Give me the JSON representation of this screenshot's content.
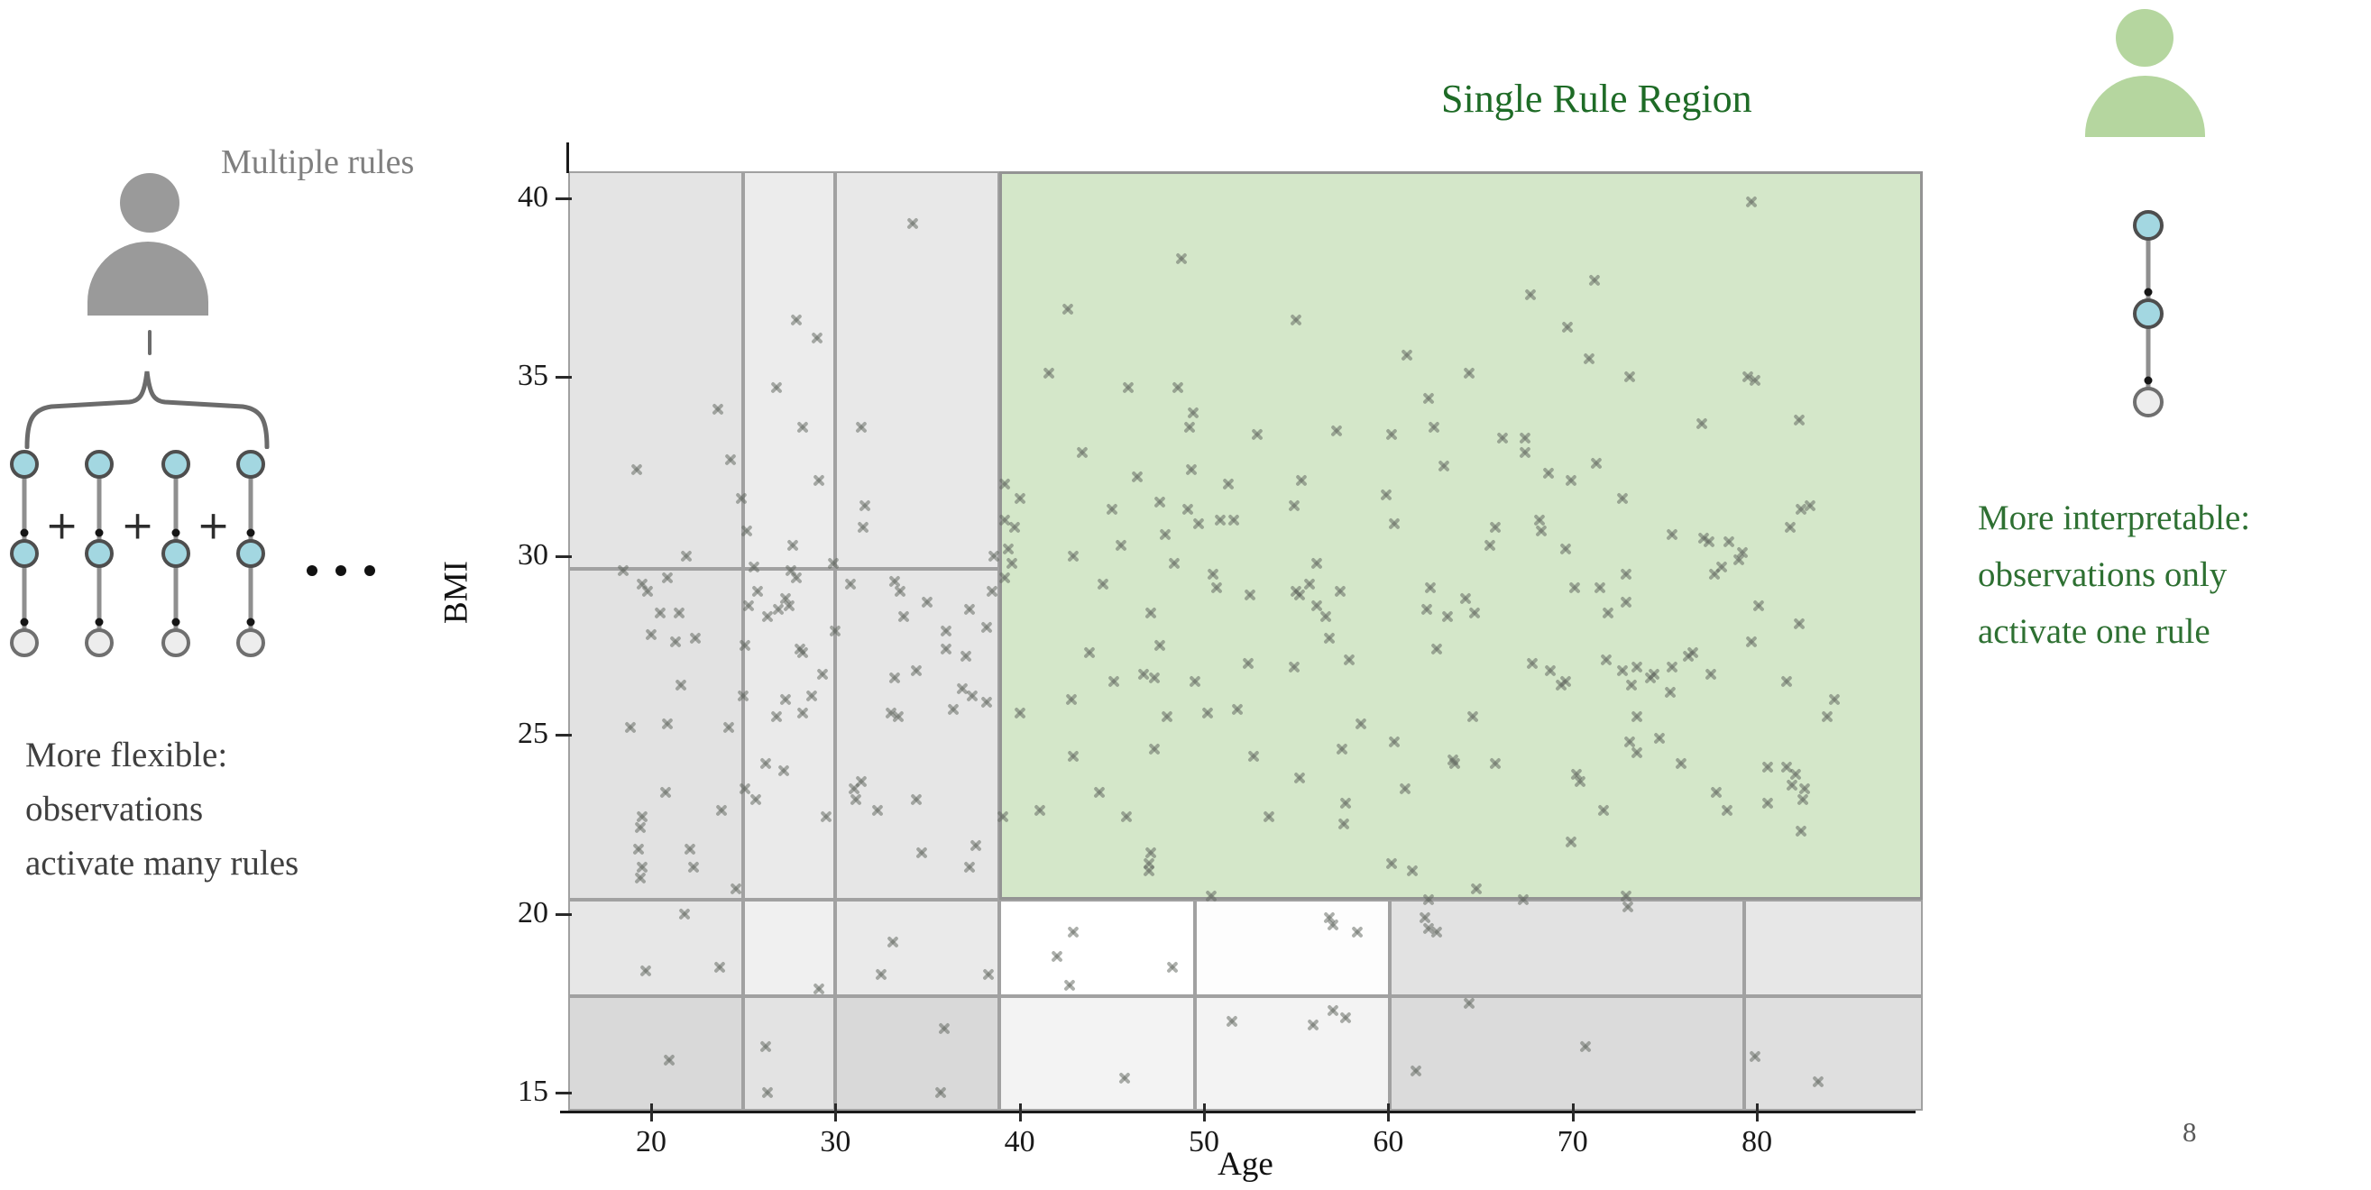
{
  "page_number": "8",
  "left_panel": {
    "title": "Multiple rules",
    "caption_lines": [
      "More flexible:",
      "observations",
      "activate many rules"
    ],
    "plus_sign": "+",
    "ellipsis_dots": 3,
    "num_chains": 4
  },
  "right_panel": {
    "title": "Single Rule Region",
    "caption_lines": [
      "More interpretable:",
      "observations only",
      "activate one rule"
    ],
    "num_chains": 1
  },
  "colors": {
    "title_green": "#1e6b26",
    "caption_green": "#2e7032",
    "caption_gray": "#3f3f3f",
    "label_gray": "#7f7f7f",
    "person_gray": "#9a9a9a",
    "person_green": "#b5d69f",
    "node_blue": "#a3d7e1",
    "node_leaf": "#ededed",
    "region_border": "#a1a1a1",
    "green_region_fill": "#d4e7c9",
    "marker_gray": "rgba(97,104,95,0.52)"
  },
  "chart_data": {
    "type": "scatter",
    "title": "Single Rule Region",
    "xlabel": "Age",
    "ylabel": "BMI",
    "xlim": [
      15.5,
      89
    ],
    "ylim": [
      14.5,
      40.75
    ],
    "xticks": [
      20,
      30,
      40,
      50,
      60,
      70,
      80
    ],
    "yticks": [
      15,
      20,
      25,
      30,
      35,
      40
    ],
    "grid": false,
    "legend": "none",
    "marker": "x",
    "regions": [
      {
        "x1": 15.5,
        "x2": 25,
        "y1": 29.65,
        "y2": 40.75,
        "fill": "#e4e4e4"
      },
      {
        "x1": 25,
        "x2": 30,
        "y1": 29.65,
        "y2": 40.75,
        "fill": "#ececec"
      },
      {
        "x1": 30,
        "x2": 38.9,
        "y1": 29.65,
        "y2": 40.75,
        "fill": "#e8e8e8"
      },
      {
        "x1": 15.5,
        "x2": 25,
        "y1": 20.4,
        "y2": 29.65,
        "fill": "#e2e2e2"
      },
      {
        "x1": 25,
        "x2": 30,
        "y1": 20.4,
        "y2": 29.65,
        "fill": "#eaeaea"
      },
      {
        "x1": 30,
        "x2": 38.9,
        "y1": 20.4,
        "y2": 29.65,
        "fill": "#e6e6e6"
      },
      {
        "x1": 15.5,
        "x2": 25,
        "y1": 17.7,
        "y2": 20.4,
        "fill": "#e7e7e7"
      },
      {
        "x1": 25,
        "x2": 30,
        "y1": 17.7,
        "y2": 20.4,
        "fill": "#f0f0f0"
      },
      {
        "x1": 30,
        "x2": 38.9,
        "y1": 17.7,
        "y2": 20.4,
        "fill": "#eaeaea"
      },
      {
        "x1": 15.5,
        "x2": 25,
        "y1": 14.5,
        "y2": 17.7,
        "fill": "#d9d9d9"
      },
      {
        "x1": 25,
        "x2": 30,
        "y1": 14.5,
        "y2": 17.7,
        "fill": "#e3e3e3"
      },
      {
        "x1": 30,
        "x2": 38.9,
        "y1": 14.5,
        "y2": 17.7,
        "fill": "#d9d9d9"
      },
      {
        "x1": 38.9,
        "x2": 89,
        "y1": 20.4,
        "y2": 40.75,
        "fill": "#d4e7c9",
        "green": true
      },
      {
        "x1": 38.9,
        "x2": 49.5,
        "y1": 17.7,
        "y2": 20.4,
        "fill": "#ffffff"
      },
      {
        "x1": 49.5,
        "x2": 60.1,
        "y1": 17.7,
        "y2": 20.4,
        "fill": "#fdfdfd"
      },
      {
        "x1": 60.1,
        "x2": 79.3,
        "y1": 17.7,
        "y2": 20.4,
        "fill": "#e2e2e2"
      },
      {
        "x1": 79.3,
        "x2": 89,
        "y1": 17.7,
        "y2": 20.4,
        "fill": "#e7e7e7"
      },
      {
        "x1": 38.9,
        "x2": 49.5,
        "y1": 14.5,
        "y2": 17.7,
        "fill": "#f3f3f3"
      },
      {
        "x1": 49.5,
        "x2": 60.1,
        "y1": 14.5,
        "y2": 17.7,
        "fill": "#f3f3f3"
      },
      {
        "x1": 60.1,
        "x2": 79.3,
        "y1": 14.5,
        "y2": 17.7,
        "fill": "#dbdbdb"
      },
      {
        "x1": 79.3,
        "x2": 89,
        "y1": 14.5,
        "y2": 17.7,
        "fill": "#dfdfdf"
      }
    ],
    "points": [
      [
        19.2,
        32.4
      ],
      [
        23.6,
        34.1
      ],
      [
        21.9,
        30.0
      ],
      [
        24.3,
        32.7
      ],
      [
        24.9,
        31.6
      ],
      [
        25.2,
        30.7
      ],
      [
        18.5,
        29.6
      ],
      [
        20.9,
        29.4
      ],
      [
        19.5,
        29.2
      ],
      [
        19.8,
        29.0
      ],
      [
        20.5,
        28.4
      ],
      [
        21.5,
        28.4
      ],
      [
        20.0,
        27.8
      ],
      [
        21.3,
        27.6
      ],
      [
        22.4,
        27.7
      ],
      [
        21.6,
        26.4
      ],
      [
        18.9,
        25.2
      ],
      [
        20.9,
        25.3
      ],
      [
        24.2,
        25.2
      ],
      [
        20.8,
        23.4
      ],
      [
        23.8,
        22.9
      ],
      [
        19.5,
        22.7
      ],
      [
        19.4,
        22.4
      ],
      [
        19.3,
        21.8
      ],
      [
        22.1,
        21.8
      ],
      [
        19.5,
        21.3
      ],
      [
        19.4,
        21.0
      ],
      [
        22.3,
        21.3
      ],
      [
        24.6,
        20.7
      ],
      [
        21.8,
        20.0
      ],
      [
        19.7,
        18.4
      ],
      [
        23.7,
        18.5
      ],
      [
        21.0,
        15.9
      ],
      [
        26.8,
        34.7
      ],
      [
        27.9,
        36.6
      ],
      [
        29.0,
        36.1
      ],
      [
        28.2,
        33.6
      ],
      [
        29.1,
        32.1
      ],
      [
        27.9,
        29.4
      ],
      [
        25.6,
        29.7
      ],
      [
        27.6,
        29.6
      ],
      [
        27.7,
        30.3
      ],
      [
        25.8,
        29.0
      ],
      [
        25.3,
        28.6
      ],
      [
        26.3,
        28.3
      ],
      [
        26.9,
        28.5
      ],
      [
        27.5,
        28.6
      ],
      [
        27.3,
        28.8
      ],
      [
        25.1,
        27.5
      ],
      [
        28.1,
        27.4
      ],
      [
        28.2,
        27.3
      ],
      [
        29.3,
        26.7
      ],
      [
        25.0,
        26.1
      ],
      [
        27.3,
        26.0
      ],
      [
        28.7,
        26.1
      ],
      [
        26.8,
        25.5
      ],
      [
        28.2,
        25.6
      ],
      [
        26.2,
        24.2
      ],
      [
        27.2,
        24.0
      ],
      [
        25.1,
        23.5
      ],
      [
        25.7,
        23.2
      ],
      [
        29.5,
        22.7
      ],
      [
        29.1,
        17.9
      ],
      [
        26.2,
        16.3
      ],
      [
        26.3,
        15.0
      ],
      [
        34.2,
        39.3
      ],
      [
        31.4,
        33.6
      ],
      [
        31.6,
        31.4
      ],
      [
        31.5,
        30.8
      ],
      [
        29.9,
        29.8
      ],
      [
        30.8,
        29.2
      ],
      [
        33.2,
        29.3
      ],
      [
        33.5,
        29.0
      ],
      [
        33.7,
        28.3
      ],
      [
        35.0,
        28.7
      ],
      [
        36.0,
        27.9
      ],
      [
        30.0,
        27.9
      ],
      [
        34.4,
        26.8
      ],
      [
        33.2,
        26.6
      ],
      [
        33.0,
        25.6
      ],
      [
        33.4,
        25.5
      ],
      [
        36.4,
        25.7
      ],
      [
        31.4,
        23.7
      ],
      [
        31.0,
        23.5
      ],
      [
        31.1,
        23.2
      ],
      [
        32.3,
        22.9
      ],
      [
        34.4,
        23.2
      ],
      [
        37.3,
        28.5
      ],
      [
        38.2,
        28.0
      ],
      [
        36.0,
        27.4
      ],
      [
        37.1,
        27.2
      ],
      [
        36.9,
        26.3
      ],
      [
        37.4,
        26.1
      ],
      [
        38.2,
        25.9
      ],
      [
        38.5,
        29.0
      ],
      [
        38.6,
        30.0
      ],
      [
        33.1,
        19.2
      ],
      [
        32.5,
        18.3
      ],
      [
        38.3,
        18.3
      ],
      [
        35.9,
        16.8
      ],
      [
        35.7,
        15.0
      ],
      [
        34.7,
        21.7
      ],
      [
        37.6,
        21.9
      ],
      [
        37.3,
        21.3
      ],
      [
        39.2,
        31.0
      ],
      [
        39.4,
        30.2
      ],
      [
        39.6,
        29.8
      ],
      [
        39.2,
        29.4
      ],
      [
        39.1,
        22.7
      ],
      [
        39.2,
        32.0
      ],
      [
        48.8,
        38.3
      ],
      [
        42.6,
        36.9
      ],
      [
        55.0,
        36.6
      ],
      [
        41.6,
        35.1
      ],
      [
        45.9,
        34.7
      ],
      [
        48.6,
        34.7
      ],
      [
        61.0,
        35.6
      ],
      [
        49.4,
        34.0
      ],
      [
        49.2,
        33.6
      ],
      [
        52.9,
        33.4
      ],
      [
        57.2,
        33.5
      ],
      [
        60.2,
        33.4
      ],
      [
        62.2,
        34.4
      ],
      [
        62.5,
        33.6
      ],
      [
        43.4,
        32.9
      ],
      [
        46.4,
        32.2
      ],
      [
        49.3,
        32.4
      ],
      [
        51.3,
        32.0
      ],
      [
        55.3,
        32.1
      ],
      [
        79.7,
        39.9
      ],
      [
        71.2,
        37.7
      ],
      [
        67.7,
        37.3
      ],
      [
        69.7,
        36.4
      ],
      [
        70.9,
        35.5
      ],
      [
        64.4,
        35.1
      ],
      [
        73.1,
        35.0
      ],
      [
        79.5,
        35.0
      ],
      [
        79.9,
        34.9
      ],
      [
        77.0,
        33.7
      ],
      [
        82.3,
        33.8
      ],
      [
        66.2,
        33.3
      ],
      [
        67.4,
        33.3
      ],
      [
        67.4,
        32.9
      ],
      [
        63.0,
        32.5
      ],
      [
        71.3,
        32.6
      ],
      [
        68.7,
        32.3
      ],
      [
        69.9,
        32.1
      ],
      [
        72.7,
        31.6
      ],
      [
        65.8,
        30.8
      ],
      [
        68.2,
        31.0
      ],
      [
        68.3,
        30.7
      ],
      [
        65.5,
        30.3
      ],
      [
        69.6,
        30.2
      ],
      [
        75.4,
        30.6
      ],
      [
        77.1,
        30.5
      ],
      [
        77.4,
        30.4
      ],
      [
        78.5,
        30.4
      ],
      [
        79.2,
        30.1
      ],
      [
        79.0,
        29.9
      ],
      [
        78.1,
        29.7
      ],
      [
        77.7,
        29.5
      ],
      [
        81.8,
        30.8
      ],
      [
        82.9,
        31.4
      ],
      [
        82.4,
        31.3
      ],
      [
        72.9,
        29.5
      ],
      [
        64.2,
        28.8
      ],
      [
        64.7,
        28.4
      ],
      [
        63.2,
        28.3
      ],
      [
        70.1,
        29.1
      ],
      [
        71.5,
        29.1
      ],
      [
        72.9,
        28.7
      ],
      [
        71.9,
        28.4
      ],
      [
        80.1,
        28.6
      ],
      [
        82.3,
        28.1
      ],
      [
        40.0,
        31.6
      ],
      [
        39.7,
        30.8
      ],
      [
        45.0,
        31.3
      ],
      [
        47.6,
        31.5
      ],
      [
        49.1,
        31.3
      ],
      [
        49.7,
        30.9
      ],
      [
        50.9,
        31.0
      ],
      [
        51.6,
        31.0
      ],
      [
        47.9,
        30.6
      ],
      [
        54.9,
        31.4
      ],
      [
        59.9,
        31.7
      ],
      [
        60.3,
        30.9
      ],
      [
        45.5,
        30.3
      ],
      [
        42.9,
        30.0
      ],
      [
        48.4,
        29.8
      ],
      [
        50.5,
        29.5
      ],
      [
        50.7,
        29.1
      ],
      [
        44.5,
        29.2
      ],
      [
        52.5,
        28.9
      ],
      [
        56.1,
        29.8
      ],
      [
        55.0,
        29.0
      ],
      [
        55.2,
        28.9
      ],
      [
        55.7,
        29.2
      ],
      [
        56.1,
        28.6
      ],
      [
        56.6,
        28.3
      ],
      [
        57.4,
        29.0
      ],
      [
        56.8,
        27.7
      ],
      [
        47.1,
        28.4
      ],
      [
        47.6,
        27.5
      ],
      [
        62.3,
        29.1
      ],
      [
        62.1,
        28.5
      ],
      [
        43.8,
        27.3
      ],
      [
        46.7,
        26.7
      ],
      [
        47.3,
        26.6
      ],
      [
        45.1,
        26.5
      ],
      [
        49.5,
        26.5
      ],
      [
        52.4,
        27.0
      ],
      [
        54.9,
        26.9
      ],
      [
        57.9,
        27.1
      ],
      [
        42.8,
        26.0
      ],
      [
        62.6,
        27.4
      ],
      [
        67.8,
        27.0
      ],
      [
        68.8,
        26.8
      ],
      [
        69.6,
        26.5
      ],
      [
        69.4,
        26.4
      ],
      [
        71.8,
        27.1
      ],
      [
        72.7,
        26.8
      ],
      [
        73.5,
        26.9
      ],
      [
        74.4,
        26.7
      ],
      [
        75.4,
        26.9
      ],
      [
        76.5,
        27.3
      ],
      [
        76.3,
        27.2
      ],
      [
        73.2,
        26.4
      ],
      [
        74.2,
        26.6
      ],
      [
        75.3,
        26.2
      ],
      [
        77.5,
        26.7
      ],
      [
        79.7,
        27.6
      ],
      [
        81.6,
        26.5
      ],
      [
        83.8,
        25.5
      ],
      [
        84.2,
        26.0
      ],
      [
        40.0,
        25.6
      ],
      [
        48.0,
        25.5
      ],
      [
        50.2,
        25.6
      ],
      [
        51.8,
        25.7
      ],
      [
        58.5,
        25.3
      ],
      [
        64.6,
        25.5
      ],
      [
        73.5,
        25.5
      ],
      [
        42.9,
        24.4
      ],
      [
        47.3,
        24.6
      ],
      [
        57.5,
        24.6
      ],
      [
        60.3,
        24.8
      ],
      [
        52.7,
        24.4
      ],
      [
        63.5,
        24.3
      ],
      [
        63.6,
        24.2
      ],
      [
        65.8,
        24.2
      ],
      [
        73.1,
        24.8
      ],
      [
        74.7,
        24.9
      ],
      [
        73.5,
        24.5
      ],
      [
        75.9,
        24.2
      ],
      [
        80.6,
        24.1
      ],
      [
        81.6,
        24.1
      ],
      [
        82.1,
        23.9
      ],
      [
        55.2,
        23.8
      ],
      [
        70.2,
        23.9
      ],
      [
        70.4,
        23.7
      ],
      [
        60.9,
        23.5
      ],
      [
        82.6,
        23.5
      ],
      [
        44.3,
        23.4
      ],
      [
        77.8,
        23.4
      ],
      [
        57.7,
        23.1
      ],
      [
        41.1,
        22.9
      ],
      [
        45.8,
        22.7
      ],
      [
        53.5,
        22.7
      ],
      [
        71.7,
        22.9
      ],
      [
        80.6,
        23.1
      ],
      [
        78.4,
        22.9
      ],
      [
        57.6,
        22.5
      ],
      [
        82.4,
        22.3
      ],
      [
        69.9,
        22.0
      ],
      [
        81.9,
        23.6
      ],
      [
        82.5,
        23.2
      ],
      [
        47.1,
        21.7
      ],
      [
        47.0,
        21.4
      ],
      [
        47.0,
        21.2
      ],
      [
        60.2,
        21.4
      ],
      [
        61.3,
        21.2
      ],
      [
        64.8,
        20.7
      ],
      [
        50.4,
        20.5
      ],
      [
        62.2,
        20.4
      ],
      [
        67.3,
        20.4
      ],
      [
        72.9,
        20.5
      ],
      [
        73.0,
        20.2
      ],
      [
        42.9,
        19.5
      ],
      [
        42.0,
        18.8
      ],
      [
        42.7,
        18.0
      ],
      [
        48.3,
        18.5
      ],
      [
        56.8,
        19.9
      ],
      [
        57.0,
        19.7
      ],
      [
        58.3,
        19.5
      ],
      [
        62.0,
        19.9
      ],
      [
        62.2,
        19.6
      ],
      [
        62.6,
        19.5
      ],
      [
        64.4,
        17.5
      ],
      [
        57.0,
        17.3
      ],
      [
        57.7,
        17.1
      ],
      [
        51.5,
        17.0
      ],
      [
        55.9,
        16.9
      ],
      [
        45.7,
        15.4
      ],
      [
        61.5,
        15.6
      ],
      [
        70.7,
        16.3
      ],
      [
        79.9,
        16.0
      ],
      [
        83.3,
        15.3
      ]
    ]
  }
}
